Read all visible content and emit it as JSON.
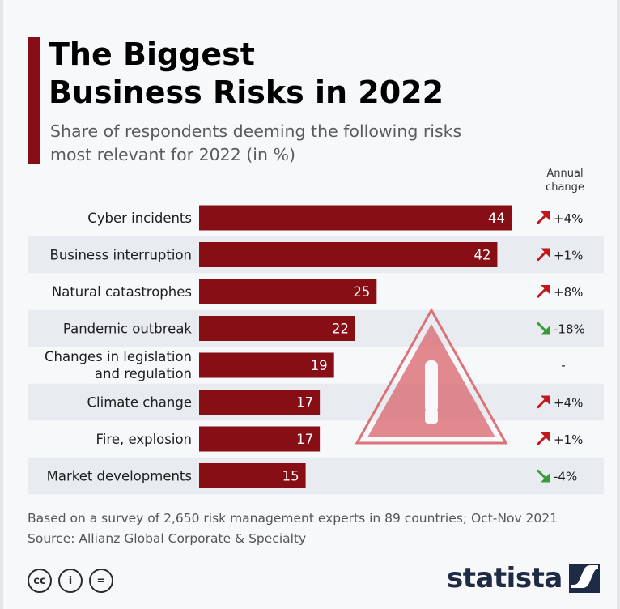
{
  "header": {
    "title_line1": "The Biggest",
    "title_line2": "Business Risks in 2022",
    "subtitle_line1": "Share of respondents deeming the following risks",
    "subtitle_line2": "most relevant for 2022 (in %)",
    "annual_change_line1": "Annual",
    "annual_change_line2": "change"
  },
  "chart_data": {
    "type": "bar",
    "orientation": "horizontal",
    "categories": [
      [
        "Cyber incidents"
      ],
      [
        "Business interruption"
      ],
      [
        "Natural catastrophes"
      ],
      [
        "Pandemic outbreak"
      ],
      [
        "Changes in legislation",
        "and regulation"
      ],
      [
        "Climate change"
      ],
      [
        "Fire, explosion"
      ],
      [
        "Market developments"
      ]
    ],
    "values": [
      44,
      42,
      25,
      22,
      19,
      17,
      17,
      15
    ],
    "annual_change": [
      "+4%",
      "+1%",
      "+8%",
      "-18%",
      "-",
      "+4%",
      "+1%",
      "-4%"
    ],
    "change_direction": [
      "up",
      "up",
      "up",
      "down",
      "none",
      "up",
      "up",
      "down"
    ],
    "xlim": [
      0,
      44
    ],
    "bar_color": "#870e14",
    "up_color": "#c0161c",
    "down_color": "#3a9a3a",
    "alt_row_color": "#e8ecf1",
    "grid": false,
    "legend": "none"
  },
  "illustration": {
    "icon": "warning-triangle-icon",
    "color": "#d9646b"
  },
  "footer": {
    "note": "Based on a survey of 2,650 risk management experts in 89 countries; Oct-Nov 2021",
    "source": "Source: Allianz Global Corporate & Specialty",
    "cc_labels": [
      "cc",
      "i",
      "="
    ],
    "logo_text": "statista"
  }
}
